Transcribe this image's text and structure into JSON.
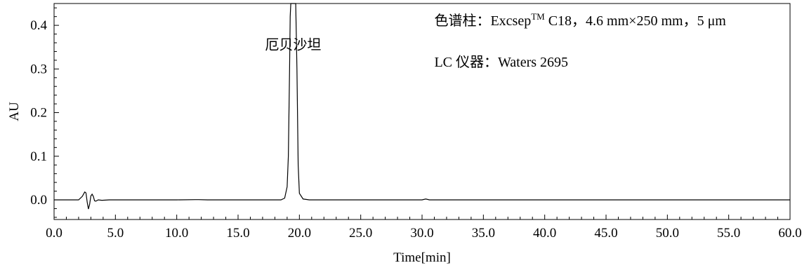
{
  "chart_data": {
    "type": "line",
    "title": "",
    "xlabel": "Time[min]",
    "ylabel": "AU",
    "xlim": [
      0,
      60
    ],
    "ylim": [
      -0.045,
      0.45
    ],
    "x_ticks": [
      "0.0",
      "5.0",
      "10.0",
      "15.0",
      "20.0",
      "25.0",
      "30.0",
      "35.0",
      "40.0",
      "45.0",
      "50.0",
      "55.0",
      "60.0"
    ],
    "y_ticks": [
      "0.0",
      "0.1",
      "0.2",
      "0.3",
      "0.4"
    ],
    "grid": false,
    "legend": "none",
    "line_color": "#000000",
    "series": [
      {
        "x": [
          0,
          2.0,
          2.3,
          2.5,
          2.6,
          2.7,
          2.8,
          2.9,
          3.0,
          3.1,
          3.2,
          3.3,
          3.4,
          3.6,
          3.9,
          4.5,
          10.0,
          11.5,
          11.8,
          12.5,
          18.5,
          18.8,
          19.0,
          19.1,
          19.2,
          19.25,
          19.3,
          19.5,
          19.7,
          19.8,
          19.9,
          20.0,
          20.3,
          20.8,
          21.5,
          30.0,
          30.3,
          30.6,
          31.0,
          60.0
        ],
        "y": [
          0.0,
          0.0,
          0.008,
          0.018,
          0.016,
          -0.005,
          -0.021,
          -0.01,
          0.009,
          0.013,
          0.008,
          -0.002,
          -0.003,
          0.0,
          -0.001,
          0.0,
          0.0,
          0.0005,
          0.0005,
          0.0,
          0.0,
          0.004,
          0.03,
          0.1,
          0.3,
          0.42,
          0.45,
          0.45,
          0.45,
          0.3,
          0.08,
          0.015,
          0.002,
          0.0,
          0.0,
          0.0,
          0.002,
          0.0,
          0.0,
          0.0
        ]
      }
    ],
    "annotations": [
      {
        "text": "厄贝沙坦",
        "x": 17.2,
        "y": 0.345
      },
      {
        "text": "色谱柱：Excsep",
        "sup": "TM",
        "tail": " C18，4.6 mm×250 mm，5 μm",
        "x": 31.0,
        "y": 0.4
      },
      {
        "text": "LC 仪器：Waters 2695",
        "x": 31.0,
        "y": 0.305
      }
    ]
  }
}
